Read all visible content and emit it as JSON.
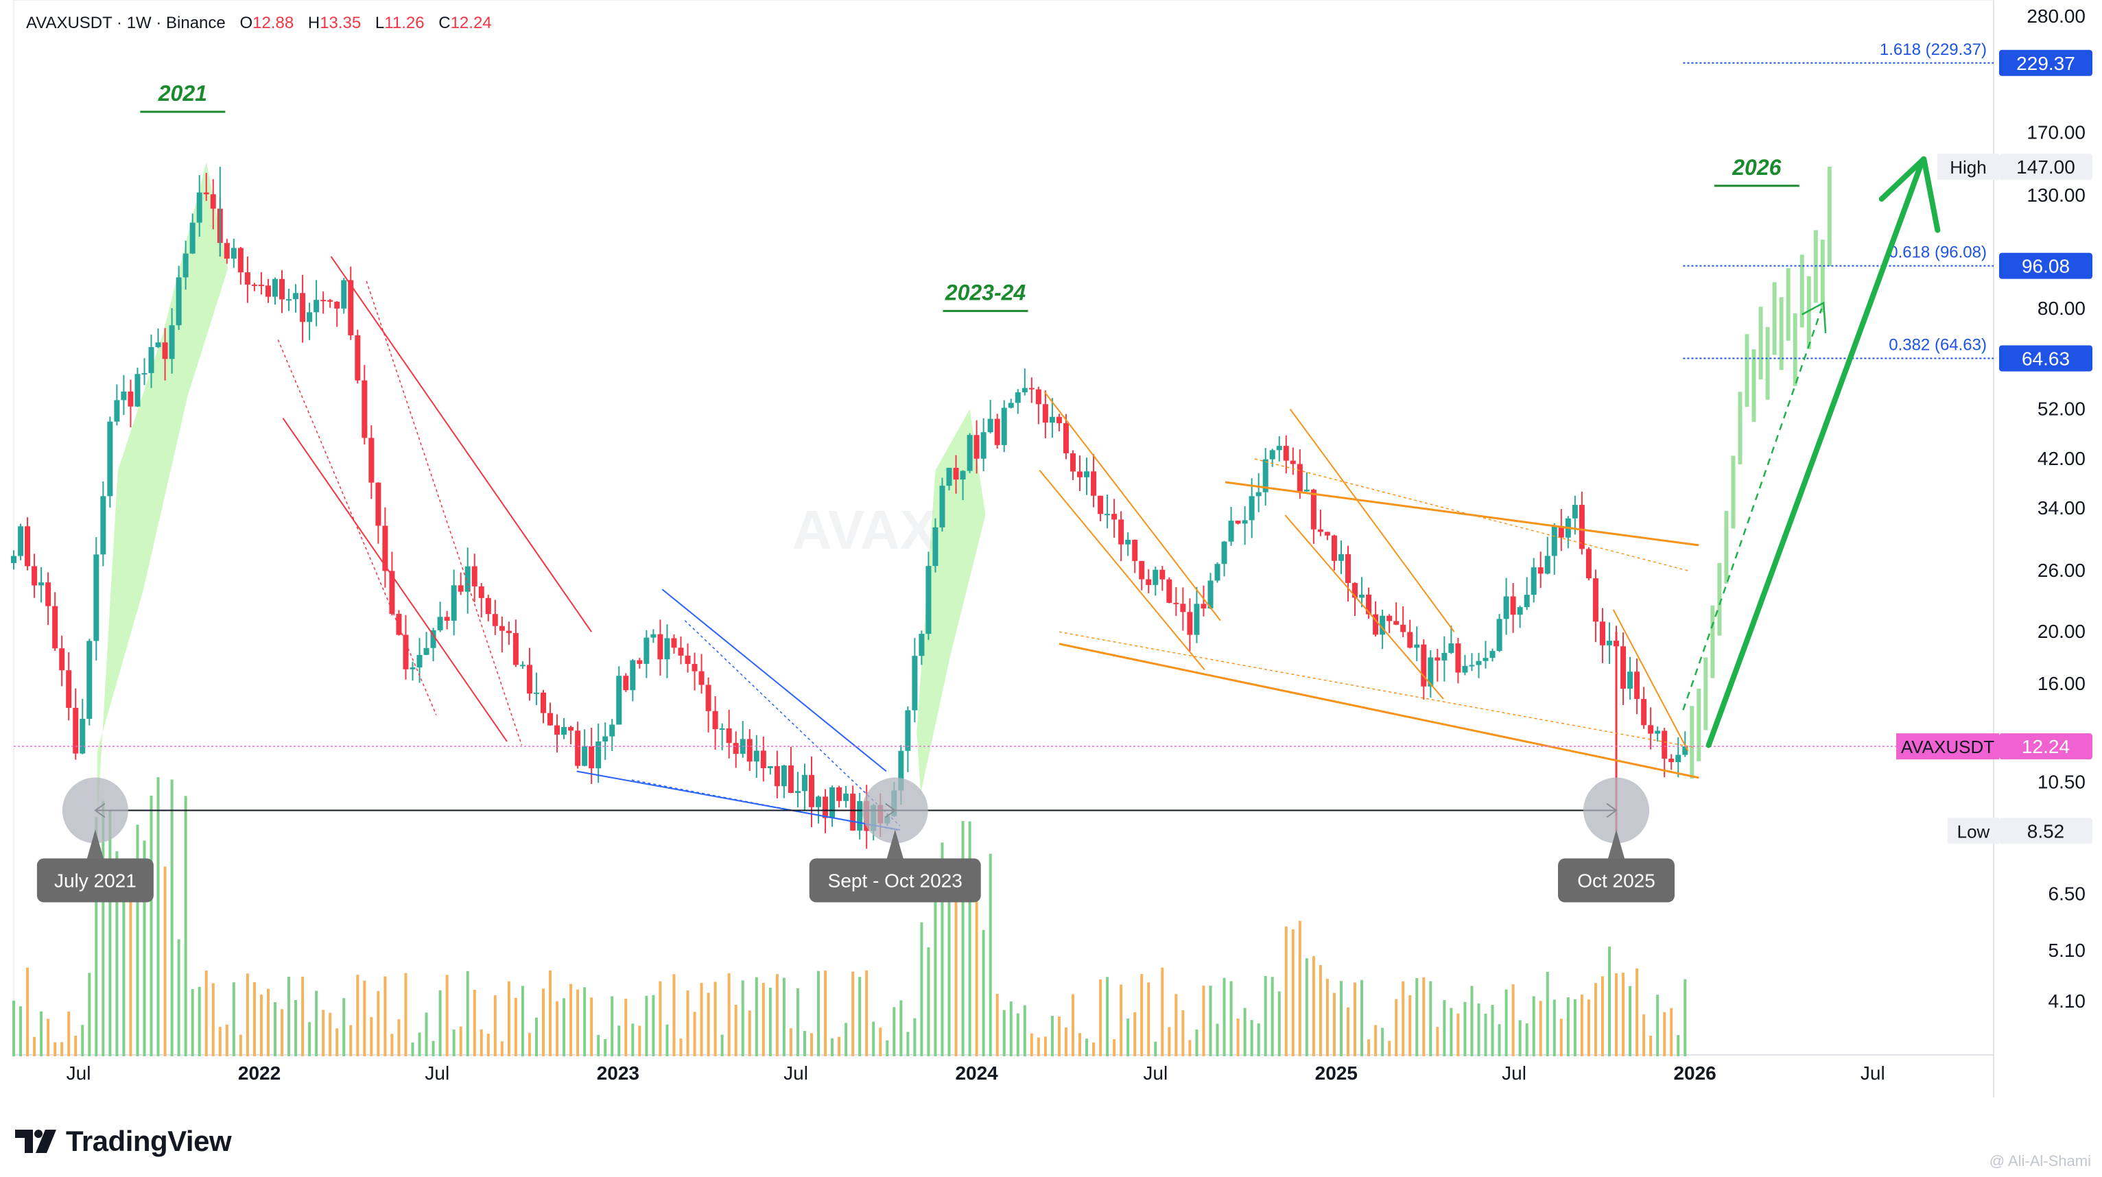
{
  "header": {
    "symbol": "AVAXUSDT · 1W · Binance",
    "o_label": "O",
    "o": "12.88",
    "h_label": "H",
    "h": "13.35",
    "l_label": "L",
    "l": "11.26",
    "c_label": "C",
    "c": "12.24"
  },
  "brand": {
    "name": "TradingView",
    "author": "@ Ali-Al-Shami"
  },
  "colors": {
    "up": "#26a69a",
    "down": "#ef5350",
    "accent_green": "#1fb14a",
    "fib_blue": "#1e53e5",
    "orange": "#f7931a",
    "pink": "#ef6ad2"
  },
  "chart_data": {
    "type": "candlestick",
    "title": "",
    "y_scale": "log",
    "ylim": [
      3.5,
      300
    ],
    "y_ticks": [
      "280.00",
      "170.00",
      "130.00",
      "80.00",
      "52.00",
      "42.00",
      "34.00",
      "26.00",
      "20.00",
      "16.00",
      "10.50",
      "6.50",
      "5.10",
      "4.10"
    ],
    "x_ticks": [
      "Jul",
      "2022",
      "Jul",
      "2023",
      "Jul",
      "2024",
      "Jul",
      "2025",
      "Jul",
      "2026",
      "Jul"
    ],
    "price_pivots": [
      {
        "x": "2021-05",
        "y": 30
      },
      {
        "x": "2021-06",
        "y": 22
      },
      {
        "x": "2021-07",
        "y": 11
      },
      {
        "x": "2021-08",
        "y": 50
      },
      {
        "x": "2021-10",
        "y": 70
      },
      {
        "x": "2021-11",
        "y": 130
      },
      {
        "x": "2021-12",
        "y": 100
      },
      {
        "x": "2022-01",
        "y": 90
      },
      {
        "x": "2022-02",
        "y": 80
      },
      {
        "x": "2022-04",
        "y": 85
      },
      {
        "x": "2022-05",
        "y": 30
      },
      {
        "x": "2022-06",
        "y": 17
      },
      {
        "x": "2022-08",
        "y": 25
      },
      {
        "x": "2022-11",
        "y": 13
      },
      {
        "x": "2022-12",
        "y": 11.5
      },
      {
        "x": "2023-02",
        "y": 20
      },
      {
        "x": "2023-06",
        "y": 11
      },
      {
        "x": "2023-10",
        "y": 8.6
      },
      {
        "x": "2023-12",
        "y": 40
      },
      {
        "x": "2024-03",
        "y": 55
      },
      {
        "x": "2024-05",
        "y": 35
      },
      {
        "x": "2024-08",
        "y": 20
      },
      {
        "x": "2024-11",
        "y": 45
      },
      {
        "x": "2025-02",
        "y": 22
      },
      {
        "x": "2025-04",
        "y": 17
      },
      {
        "x": "2025-06",
        "y": 19
      },
      {
        "x": "2025-09",
        "y": 33
      },
      {
        "x": "2025-10",
        "y": 19
      },
      {
        "x": "2025-12",
        "y": 12.24
      }
    ],
    "projection": "2026 rally toward 0.618 (96.08) and 1.618 (229.37)",
    "fib_levels": [
      {
        "label": "1.618 (229.37)",
        "value": 229.37
      },
      {
        "label": "0.618 (96.08)",
        "value": 96.08
      },
      {
        "label": "0.382 (64.63)",
        "value": 64.63
      }
    ],
    "price_labels": [
      {
        "text": "229.37",
        "value": 229.37
      },
      {
        "text": "96.08",
        "value": 96.08
      },
      {
        "text": "64.63",
        "value": 64.63
      },
      {
        "text": "147.00",
        "value": 147.0,
        "tag": "High"
      },
      {
        "text": "12.24",
        "value": 12.24,
        "tag": "AVAXUSDT"
      },
      {
        "text": "8.52",
        "value": 8.52,
        "tag": "Low"
      }
    ],
    "annotations": [
      "2021",
      "2023-24",
      "2026",
      "July 2021",
      "Sept - Oct 2023",
      "Oct 2025"
    ]
  }
}
